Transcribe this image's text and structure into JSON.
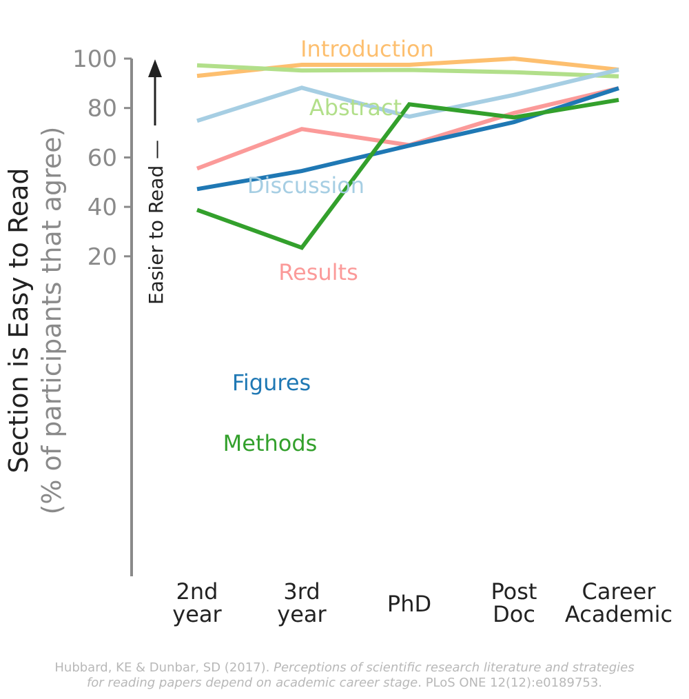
{
  "chart_data": {
    "type": "line",
    "categories": [
      [
        "2nd",
        "year"
      ],
      [
        "3rd",
        "year"
      ],
      [
        "PhD"
      ],
      [
        "Post",
        "Doc"
      ],
      [
        "Career",
        "Academic"
      ]
    ],
    "ylabel": "Section is Easy to Read",
    "ylabel_sub": "(% of participants that agree)",
    "arrow_label": "Easier to Read —",
    "ylim": [
      18,
      104
    ],
    "yticks": [
      20,
      40,
      60,
      80,
      100
    ],
    "grid": false,
    "series": [
      {
        "name": "Introduction",
        "color": "#fdbf6f",
        "values": [
          93,
          97.5,
          97.5,
          100,
          95.5
        ]
      },
      {
        "name": "Abstract",
        "color": "#b2df8a",
        "values": [
          97.3,
          95.2,
          95.4,
          94.5,
          92.8
        ]
      },
      {
        "name": "Discussion",
        "color": "#a6cee3",
        "values": [
          74.8,
          88.2,
          76.5,
          85.3,
          95.5
        ]
      },
      {
        "name": "Results",
        "color": "#fb9a99",
        "values": [
          55.5,
          71.5,
          65,
          78,
          88
        ]
      },
      {
        "name": "Figures",
        "color": "#1f78b4",
        "values": [
          47.2,
          54.5,
          64.8,
          74.3,
          88
        ]
      },
      {
        "name": "Methods",
        "color": "#33a02c",
        "values": [
          38.8,
          23.5,
          81.5,
          76.2,
          83.3
        ]
      }
    ]
  },
  "citation": {
    "plain1": "Hubbard, KE & Dunbar, SD (2017). ",
    "italic1": "Perceptions of scientific research literature and strategies",
    "italic2": "for reading papers depend on academic career stage",
    "plain2": ". PLoS ONE 12(12):e0189753."
  }
}
